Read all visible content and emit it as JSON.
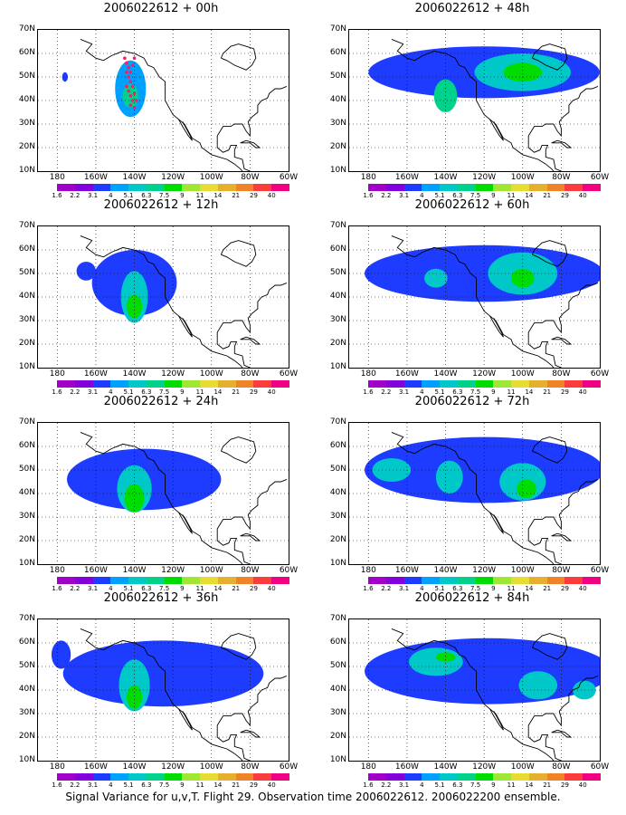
{
  "panels": [
    {
      "title": "2006022612 + 00h",
      "observations": true,
      "blobs": [
        {
          "cx": -142,
          "cy": 45,
          "rx": 8,
          "ry": 12,
          "level": 3
        },
        {
          "cx": -142,
          "cy": 42,
          "rx": 4,
          "ry": 5,
          "level": 5
        },
        {
          "cx": -176,
          "cy": 50,
          "rx": 1.5,
          "ry": 2,
          "level": 2
        }
      ]
    },
    {
      "title": "2006022612 + 48h",
      "blobs": [
        {
          "cx": -120,
          "cy": 52,
          "rx": 60,
          "ry": 11,
          "level": 2
        },
        {
          "cx": -100,
          "cy": 52,
          "rx": 25,
          "ry": 8,
          "level": 4
        },
        {
          "cx": -100,
          "cy": 52,
          "rx": 10,
          "ry": 4,
          "level": 6
        },
        {
          "cx": -140,
          "cy": 42,
          "rx": 6,
          "ry": 7,
          "level": 5
        }
      ]
    },
    {
      "title": "2006022612 + 12h",
      "blobs": [
        {
          "cx": -140,
          "cy": 46,
          "rx": 22,
          "ry": 14,
          "level": 2
        },
        {
          "cx": -140,
          "cy": 40,
          "rx": 7,
          "ry": 11,
          "level": 4
        },
        {
          "cx": -140,
          "cy": 36,
          "rx": 4,
          "ry": 5,
          "level": 6
        },
        {
          "cx": -165,
          "cy": 51,
          "rx": 5,
          "ry": 4,
          "level": 2
        }
      ]
    },
    {
      "title": "2006022612 + 60h",
      "blobs": [
        {
          "cx": -120,
          "cy": 50,
          "rx": 62,
          "ry": 12,
          "level": 2
        },
        {
          "cx": -100,
          "cy": 50,
          "rx": 18,
          "ry": 9,
          "level": 4
        },
        {
          "cx": -100,
          "cy": 48,
          "rx": 6,
          "ry": 4,
          "level": 6
        },
        {
          "cx": -145,
          "cy": 48,
          "rx": 6,
          "ry": 4,
          "level": 4
        }
      ]
    },
    {
      "title": "2006022612 + 24h",
      "blobs": [
        {
          "cx": -135,
          "cy": 46,
          "rx": 40,
          "ry": 13,
          "level": 2
        },
        {
          "cx": -140,
          "cy": 42,
          "rx": 9,
          "ry": 10,
          "level": 4
        },
        {
          "cx": -140,
          "cy": 38,
          "rx": 5,
          "ry": 6,
          "level": 6
        }
      ]
    },
    {
      "title": "2006022612 + 72h",
      "blobs": [
        {
          "cx": -120,
          "cy": 50,
          "rx": 62,
          "ry": 14,
          "level": 2
        },
        {
          "cx": -168,
          "cy": 50,
          "rx": 10,
          "ry": 5,
          "level": 4
        },
        {
          "cx": -138,
          "cy": 47,
          "rx": 7,
          "ry": 7,
          "level": 4
        },
        {
          "cx": -100,
          "cy": 45,
          "rx": 12,
          "ry": 8,
          "level": 4
        },
        {
          "cx": -98,
          "cy": 42,
          "rx": 5,
          "ry": 4,
          "level": 6
        }
      ]
    },
    {
      "title": "2006022612 + 36h",
      "blobs": [
        {
          "cx": -125,
          "cy": 47,
          "rx": 52,
          "ry": 14,
          "level": 2
        },
        {
          "cx": -140,
          "cy": 42,
          "rx": 8,
          "ry": 11,
          "level": 4
        },
        {
          "cx": -140,
          "cy": 37,
          "rx": 4,
          "ry": 5,
          "level": 6
        },
        {
          "cx": -178,
          "cy": 55,
          "rx": 5,
          "ry": 6,
          "level": 2
        }
      ]
    },
    {
      "title": "2006022612 + 84h",
      "blobs": [
        {
          "cx": -118,
          "cy": 48,
          "rx": 64,
          "ry": 14,
          "level": 2
        },
        {
          "cx": -145,
          "cy": 52,
          "rx": 14,
          "ry": 6,
          "level": 4
        },
        {
          "cx": -140,
          "cy": 54,
          "rx": 5,
          "ry": 2,
          "level": 6
        },
        {
          "cx": -92,
          "cy": 42,
          "rx": 10,
          "ry": 6,
          "level": 4
        },
        {
          "cx": -68,
          "cy": 40,
          "rx": 6,
          "ry": 4,
          "level": 4
        }
      ]
    }
  ],
  "axes": {
    "lat_ticks": [
      "70N",
      "60N",
      "50N",
      "40N",
      "30N",
      "20N",
      "10N"
    ],
    "lon_ticks": [
      "180",
      "160W",
      "140W",
      "120W",
      "100W",
      "80W",
      "60W"
    ],
    "lat_range": [
      10,
      70
    ],
    "lon_range": [
      -190,
      -60
    ]
  },
  "colorbar": {
    "labels": [
      "1.6",
      "2.2",
      "3.1",
      "4",
      "5.1",
      "6.3",
      "7.5",
      "9",
      "11",
      "14",
      "21",
      "29",
      "40"
    ],
    "colors": [
      "#a000c8",
      "#8200dc",
      "#1e3cff",
      "#00a0ff",
      "#00c8c8",
      "#00d28c",
      "#00dc00",
      "#a0e632",
      "#e6dc32",
      "#e6af2d",
      "#f08228",
      "#fa3c3c",
      "#f00082"
    ]
  },
  "observations": [
    {
      "lon": -145,
      "lat": 58
    },
    {
      "lon": -144,
      "lat": 56
    },
    {
      "lon": -143,
      "lat": 54
    },
    {
      "lon": -144,
      "lat": 52
    },
    {
      "lon": -143,
      "lat": 50
    },
    {
      "lon": -142,
      "lat": 48
    },
    {
      "lon": -144,
      "lat": 46
    },
    {
      "lon": -143,
      "lat": 44
    },
    {
      "lon": -142,
      "lat": 42
    },
    {
      "lon": -141,
      "lat": 40
    },
    {
      "lon": -142,
      "lat": 38
    },
    {
      "lon": -140,
      "lat": 37
    },
    {
      "lon": -140,
      "lat": 58
    },
    {
      "lon": -141,
      "lat": 55
    },
    {
      "lon": -142,
      "lat": 52
    },
    {
      "lon": -141,
      "lat": 46
    },
    {
      "lon": -140,
      "lat": 43
    },
    {
      "lon": -139,
      "lat": 40
    }
  ],
  "observation_color": "#ff1a66",
  "footer": "Signal Variance for u,v,T. Flight 29. Observation time 2006022612. 2006022200 ensemble."
}
